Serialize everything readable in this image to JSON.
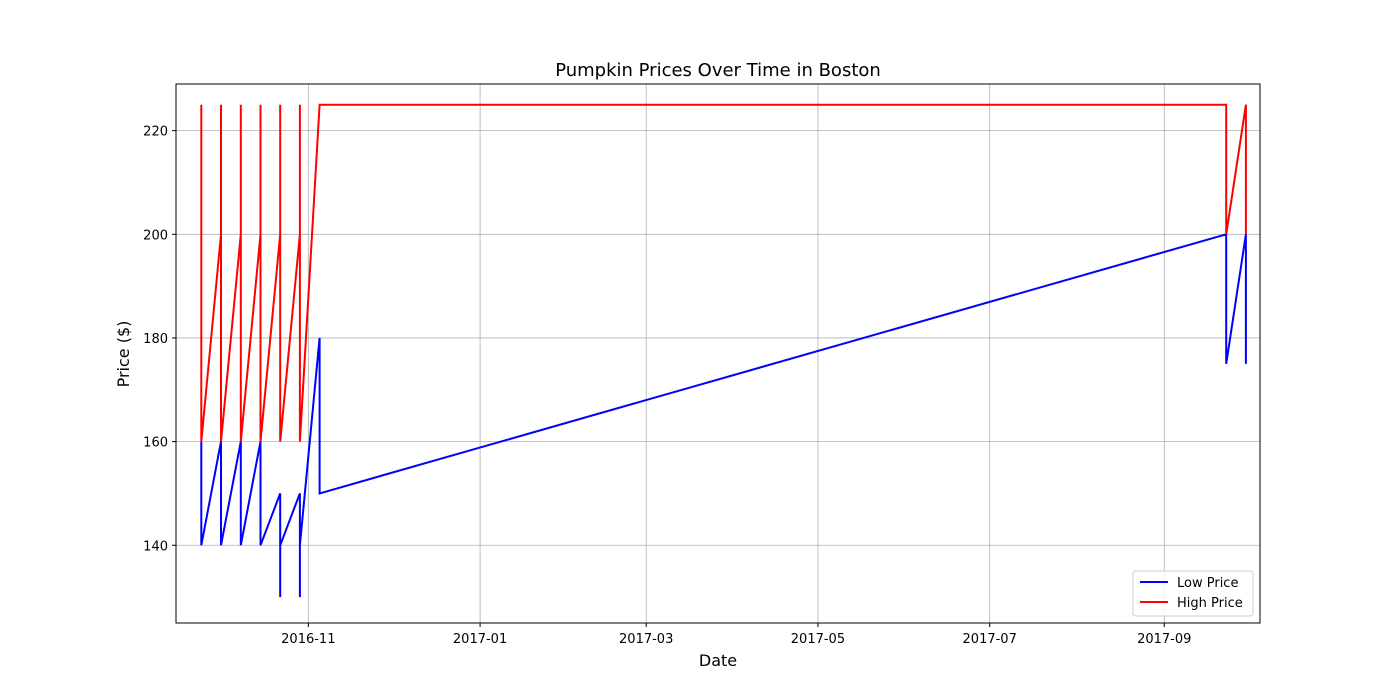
{
  "chart_data": {
    "type": "line",
    "title": "Pumpkin Prices Over Time in Boston",
    "xlabel": "Date",
    "ylabel": "Price ($)",
    "x_axis_type": "date",
    "xlim": [
      "2016-09-15",
      "2017-10-05"
    ],
    "ylim": [
      125,
      229
    ],
    "x_ticks": [
      "2016-11-01",
      "2017-01-01",
      "2017-03-01",
      "2017-05-01",
      "2017-07-01",
      "2017-09-01"
    ],
    "x_tick_labels": [
      "2016-11",
      "2017-01",
      "2017-03",
      "2017-05",
      "2017-07",
      "2017-09"
    ],
    "y_ticks": [
      140,
      160,
      180,
      200,
      220
    ],
    "y_tick_labels": [
      "140",
      "160",
      "180",
      "200",
      "220"
    ],
    "grid": true,
    "legend_position": "bottom-right",
    "series": [
      {
        "name": "Low Price",
        "color": "#0000ff",
        "points": [
          [
            "2016-09-24",
            140
          ],
          [
            "2016-09-24",
            160
          ],
          [
            "2016-09-24",
            140
          ],
          [
            "2016-09-24",
            160
          ],
          [
            "2016-09-24",
            140
          ],
          [
            "2016-10-01",
            160
          ],
          [
            "2016-10-01",
            140
          ],
          [
            "2016-10-08",
            160
          ],
          [
            "2016-10-08",
            140
          ],
          [
            "2016-10-08",
            160
          ],
          [
            "2016-10-08",
            140
          ],
          [
            "2016-10-15",
            160
          ],
          [
            "2016-10-15",
            140
          ],
          [
            "2016-10-22",
            150
          ],
          [
            "2016-10-22",
            130
          ],
          [
            "2016-10-22",
            150
          ],
          [
            "2016-10-22",
            140
          ],
          [
            "2016-10-29",
            150
          ],
          [
            "2016-10-29",
            130
          ],
          [
            "2016-10-29",
            150
          ],
          [
            "2016-10-29",
            140
          ],
          [
            "2016-11-05",
            180
          ],
          [
            "2016-11-05",
            150
          ],
          [
            "2017-09-23",
            200
          ],
          [
            "2017-09-23",
            175
          ],
          [
            "2017-09-30",
            200
          ],
          [
            "2017-09-30",
            175
          ]
        ]
      },
      {
        "name": "High Price",
        "color": "#ff0000",
        "points": [
          [
            "2016-09-24",
            160
          ],
          [
            "2016-09-24",
            225
          ],
          [
            "2016-09-24",
            160
          ],
          [
            "2016-09-24",
            225
          ],
          [
            "2016-09-24",
            160
          ],
          [
            "2016-10-01",
            200
          ],
          [
            "2016-10-01",
            225
          ],
          [
            "2016-10-01",
            160
          ],
          [
            "2016-10-08",
            200
          ],
          [
            "2016-10-08",
            225
          ],
          [
            "2016-10-08",
            160
          ],
          [
            "2016-10-08",
            225
          ],
          [
            "2016-10-08",
            160
          ],
          [
            "2016-10-15",
            200
          ],
          [
            "2016-10-15",
            225
          ],
          [
            "2016-10-15",
            160
          ],
          [
            "2016-10-22",
            200
          ],
          [
            "2016-10-22",
            225
          ],
          [
            "2016-10-22",
            160
          ],
          [
            "2016-10-29",
            200
          ],
          [
            "2016-10-29",
            225
          ],
          [
            "2016-10-29",
            160
          ],
          [
            "2016-11-05",
            225
          ],
          [
            "2017-09-23",
            225
          ],
          [
            "2017-09-23",
            200
          ],
          [
            "2017-09-30",
            225
          ],
          [
            "2017-09-30",
            200
          ]
        ]
      }
    ]
  }
}
